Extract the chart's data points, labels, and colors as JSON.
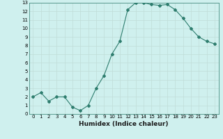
{
  "x": [
    0,
    1,
    2,
    3,
    4,
    5,
    6,
    7,
    8,
    9,
    10,
    11,
    12,
    13,
    14,
    15,
    16,
    17,
    18,
    19,
    20,
    21,
    22,
    23
  ],
  "y": [
    2,
    2.5,
    1.5,
    2,
    2,
    0.8,
    0.4,
    1,
    3,
    4.5,
    7,
    8.5,
    12.2,
    13,
    13,
    12.8,
    12.7,
    12.8,
    12.2,
    11.2,
    10,
    9,
    8.5,
    8.2
  ],
  "line_color": "#2e7d6e",
  "marker": "D",
  "marker_size": 2,
  "bg_color": "#cff0ee",
  "grid_color": "#c0ddd8",
  "xlabel": "Humidex (Indice chaleur)",
  "xlim": [
    -0.5,
    23.5
  ],
  "ylim": [
    0,
    13
  ],
  "yticks": [
    0,
    1,
    2,
    3,
    4,
    5,
    6,
    7,
    8,
    9,
    10,
    11,
    12,
    13
  ],
  "xticks": [
    0,
    1,
    2,
    3,
    4,
    5,
    6,
    7,
    8,
    9,
    10,
    11,
    12,
    13,
    14,
    15,
    16,
    17,
    18,
    19,
    20,
    21,
    22,
    23
  ],
  "tick_fontsize": 5.0,
  "xlabel_fontsize": 6.5
}
